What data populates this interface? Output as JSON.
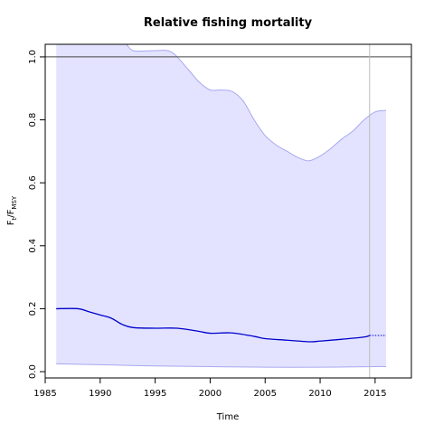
{
  "chart_data": {
    "type": "line",
    "title": "Relative fishing mortality",
    "xlabel": "Time",
    "ylabel_main": "F",
    "ylabel_main_sub": "t",
    "ylabel_ref": "F",
    "ylabel_ref_sub": "MSY",
    "xlim": [
      1985,
      2018.3
    ],
    "ylim": [
      -0.02,
      1.04
    ],
    "x_ticks": [
      1985,
      1990,
      1995,
      2000,
      2005,
      2010,
      2015
    ],
    "y_ticks": [
      "0.0",
      "0.2",
      "0.4",
      "0.6",
      "0.8",
      "1.0"
    ],
    "reference_line_y": 1.0,
    "last_data_x": 2014.5,
    "colors": {
      "ci_fill": "#e3e3ff",
      "ci_edge": "#a8a8f0",
      "series": "#0000cc",
      "reference": "#444444",
      "marker_line": "#bbbbbb"
    },
    "series": [
      {
        "values": [
          [
            1986,
            0.2
          ],
          [
            1988,
            0.2
          ],
          [
            1989,
            0.19
          ],
          [
            1990,
            0.18
          ],
          [
            1991,
            0.17
          ],
          [
            1992,
            0.15
          ],
          [
            1993,
            0.14
          ],
          [
            1995,
            0.138
          ],
          [
            1997,
            0.138
          ],
          [
            1999,
            0.128
          ],
          [
            2000,
            0.122
          ],
          [
            2002,
            0.123
          ],
          [
            2004,
            0.112
          ],
          [
            2005,
            0.105
          ],
          [
            2007,
            0.1
          ],
          [
            2009,
            0.095
          ],
          [
            2010,
            0.097
          ],
          [
            2012,
            0.103
          ],
          [
            2014,
            0.11
          ],
          [
            2014.5,
            0.115
          ]
        ],
        "forecast": [
          [
            2014.5,
            0.115
          ],
          [
            2016,
            0.115
          ]
        ]
      }
    ],
    "ci_upper": [
      [
        1986,
        1.05
      ],
      [
        1988,
        1.05
      ],
      [
        1990,
        1.05
      ],
      [
        1992,
        1.05
      ],
      [
        1993,
        1.02
      ],
      [
        1995,
        1.02
      ],
      [
        1996.5,
        1.015
      ],
      [
        1998,
        0.96
      ],
      [
        1999,
        0.92
      ],
      [
        2000,
        0.895
      ],
      [
        2001,
        0.895
      ],
      [
        2002,
        0.89
      ],
      [
        2003,
        0.86
      ],
      [
        2004,
        0.8
      ],
      [
        2005,
        0.75
      ],
      [
        2006,
        0.72
      ],
      [
        2007,
        0.7
      ],
      [
        2008,
        0.68
      ],
      [
        2009,
        0.67
      ],
      [
        2010,
        0.685
      ],
      [
        2011,
        0.71
      ],
      [
        2012,
        0.74
      ],
      [
        2013,
        0.765
      ],
      [
        2014,
        0.8
      ],
      [
        2015,
        0.825
      ],
      [
        2016,
        0.83
      ]
    ],
    "ci_lower": [
      [
        1986,
        0.025
      ],
      [
        1990,
        0.022
      ],
      [
        1995,
        0.018
      ],
      [
        2000,
        0.016
      ],
      [
        2005,
        0.014
      ],
      [
        2010,
        0.014
      ],
      [
        2015,
        0.016
      ],
      [
        2016,
        0.016
      ]
    ]
  }
}
